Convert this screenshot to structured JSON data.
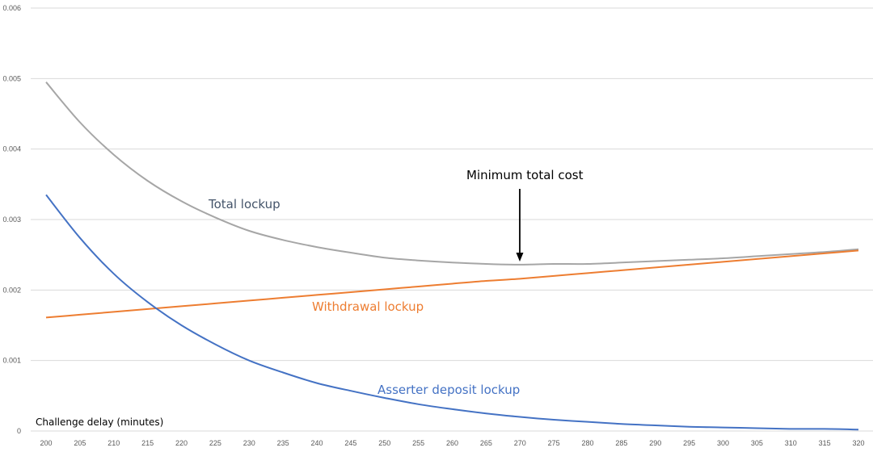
{
  "chart_data": {
    "type": "line",
    "title": "",
    "xlabel": "Challenge delay (minutes)",
    "ylabel": "",
    "xlim": [
      200,
      320
    ],
    "ylim": [
      0,
      0.006
    ],
    "grid": true,
    "x": [
      200,
      205,
      210,
      215,
      220,
      225,
      230,
      235,
      240,
      245,
      250,
      255,
      260,
      265,
      270,
      275,
      280,
      285,
      290,
      295,
      300,
      305,
      310,
      315,
      320
    ],
    "x_tick_labels": [
      "200",
      "205",
      "210",
      "215",
      "220",
      "225",
      "230",
      "235",
      "240",
      "245",
      "250",
      "255",
      "260",
      "265",
      "270",
      "275",
      "280",
      "285",
      "290",
      "295",
      "300",
      "305",
      "310",
      "315",
      "320"
    ],
    "y_ticks": [
      0,
      0.001,
      0.002,
      0.003,
      0.004,
      0.005,
      0.006
    ],
    "y_tick_labels": [
      "0",
      "0.001",
      "0.002",
      "0.003",
      "0.004",
      "0.005",
      "0.006"
    ],
    "series": [
      {
        "name": "Total lockup",
        "color": "#a6a6a6",
        "values": [
          0.00495,
          0.00438,
          0.00392,
          0.00355,
          0.00326,
          0.00303,
          0.00284,
          0.00271,
          0.00261,
          0.00253,
          0.00246,
          0.00242,
          0.00239,
          0.00237,
          0.00236,
          0.00237,
          0.00237,
          0.00239,
          0.00241,
          0.00243,
          0.00245,
          0.00248,
          0.00251,
          0.00254,
          0.00258
        ]
      },
      {
        "name": "Withdrawal lockup",
        "color": "#ed7d31",
        "values": [
          0.00161,
          0.00165,
          0.00169,
          0.00173,
          0.00177,
          0.00181,
          0.00185,
          0.00189,
          0.00193,
          0.00197,
          0.00201,
          0.00205,
          0.00209,
          0.00213,
          0.00216,
          0.0022,
          0.00224,
          0.00228,
          0.00232,
          0.00236,
          0.0024,
          0.00244,
          0.00248,
          0.00252,
          0.00256
        ]
      },
      {
        "name": "Asserter deposit lockup",
        "color": "#4472c4",
        "values": [
          0.00335,
          0.00274,
          0.00223,
          0.00183,
          0.0015,
          0.00123,
          0.001,
          0.00083,
          0.00068,
          0.00057,
          0.00047,
          0.00038,
          0.00031,
          0.00025,
          0.0002,
          0.00016,
          0.00013,
          0.0001,
          8e-05,
          6e-05,
          5e-05,
          4e-05,
          3e-05,
          3e-05,
          2e-05
        ]
      }
    ],
    "annotations": [
      {
        "text": "Minimum total cost",
        "x": 270,
        "y": 0.00236
      }
    ]
  }
}
